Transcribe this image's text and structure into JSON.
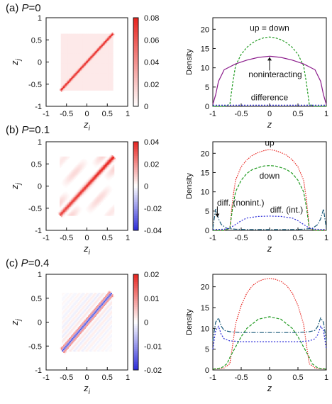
{
  "panels": [
    {
      "label": "(a)",
      "param_symbol": "P",
      "param_text": "=0",
      "heatmap": {
        "xlabel": "z",
        "xlabel_sub": "i",
        "ylabel": "z",
        "ylabel_sub": "j",
        "x_ticks": [
          "-1",
          "-0.5",
          "0",
          "0.5",
          "1"
        ],
        "y_ticks": [
          "1",
          "0.5",
          "0",
          "-0.5",
          "-1"
        ],
        "colorbar_ticks": [
          "0.08",
          "0.06",
          "0.04",
          "0.02",
          "0"
        ],
        "colorbar_range": [
          0,
          0.08
        ],
        "pattern": "diagonal-only"
      },
      "density": {
        "xlabel": "z",
        "ylabel": "Density",
        "x_ticks": [
          "-1",
          "-0.5",
          "0",
          "0.5",
          "1"
        ],
        "y_ticks": [
          "20",
          "15",
          "10",
          "5",
          "0"
        ],
        "ylim": [
          0,
          23
        ],
        "annotations": [
          "up = down",
          "noninteracting",
          "difference"
        ]
      }
    },
    {
      "label": "(b)",
      "param_symbol": "P",
      "param_text": "=0.1",
      "heatmap": {
        "xlabel": "z",
        "xlabel_sub": "i",
        "ylabel": "z",
        "ylabel_sub": "j",
        "x_ticks": [
          "-1",
          "-0.5",
          "0",
          "0.5",
          "1"
        ],
        "y_ticks": [
          "1",
          "0.5",
          "0",
          "-0.5",
          "-1"
        ],
        "colorbar_ticks": [
          "0.04",
          "0.02",
          "0",
          "-0.02",
          "-0.04"
        ],
        "colorbar_range": [
          -0.04,
          0.04
        ],
        "pattern": "diagonal-with-blobs"
      },
      "density": {
        "xlabel": "z",
        "ylabel": "Density",
        "x_ticks": [
          "-1",
          "-0.5",
          "0",
          "0.5",
          "1"
        ],
        "y_ticks": [
          "20",
          "15",
          "10",
          "5",
          "0"
        ],
        "ylim": [
          0,
          23
        ],
        "annotations": [
          "up",
          "down",
          "diff. (nonint.)",
          "diff. (int.)"
        ]
      }
    },
    {
      "label": "(c)",
      "param_symbol": "P",
      "param_text": "=0.4",
      "heatmap": {
        "xlabel": "z",
        "xlabel_sub": "i",
        "ylabel": "z",
        "ylabel_sub": "j",
        "x_ticks": [
          "-1",
          "-0.5",
          "0",
          "0.5",
          "1"
        ],
        "y_ticks": [
          "1",
          "0.5",
          "0",
          "-0.5",
          "-1"
        ],
        "colorbar_ticks": [
          "0.02",
          "0.01",
          "0",
          "-0.01",
          "-0.02"
        ],
        "colorbar_range": [
          -0.02,
          0.02
        ],
        "pattern": "diagonal-with-fine-stripes"
      },
      "density": {
        "xlabel": "z",
        "ylabel": "Density",
        "x_ticks": [
          "-1",
          "-0.5",
          "0",
          "0.5",
          "1"
        ],
        "y_ticks": [
          "20",
          "15",
          "10",
          "5",
          "0"
        ],
        "ylim": [
          0,
          23
        ],
        "annotations": []
      }
    }
  ],
  "colors": {
    "up": "#e8231e",
    "down": "#1f9a1f",
    "noninteracting": "#8a1a8a",
    "diff_nonint": "#1a5a7a",
    "diff_int": "#2a2ad8",
    "cmap_pos": "#e8231e",
    "cmap_neg": "#2a2ad8"
  },
  "chart_data": [
    {
      "type": "heatmap",
      "panel": "(a)",
      "x_range": [
        -1,
        1
      ],
      "y_range": [
        -1,
        1
      ],
      "color_range": [
        0,
        0.08
      ],
      "features": {
        "diagonal_peak": 0.08,
        "support": [
          -0.65,
          0.65
        ],
        "background": 0.01
      }
    },
    {
      "type": "line",
      "panel": "(a)",
      "xlim": [
        -1,
        1
      ],
      "ylim": [
        0,
        23
      ],
      "series": [
        {
          "name": "up = down",
          "x": [
            -1,
            -0.8,
            -0.7,
            -0.65,
            -0.6,
            -0.5,
            -0.4,
            -0.3,
            -0.2,
            -0.1,
            0,
            0.1,
            0.2,
            0.3,
            0.4,
            0.5,
            0.6,
            0.65,
            0.7,
            0.8,
            1
          ],
          "y": [
            0,
            0,
            0.5,
            6,
            10.5,
            13.5,
            15.3,
            16.5,
            17.3,
            17.8,
            18,
            17.8,
            17.3,
            16.5,
            15.3,
            13.5,
            10.5,
            6,
            0.5,
            0,
            0
          ]
        },
        {
          "name": "noninteracting",
          "x": [
            -1,
            -0.95,
            -0.9,
            -0.8,
            -0.6,
            -0.4,
            -0.2,
            0,
            0.2,
            0.4,
            0.6,
            0.8,
            0.9,
            0.95,
            1
          ],
          "y": [
            0.5,
            3,
            6.5,
            9.5,
            11,
            12,
            12.7,
            13,
            12.7,
            12,
            11,
            9.5,
            6.5,
            3,
            0.5
          ]
        },
        {
          "name": "difference",
          "x": [
            -1,
            1
          ],
          "y": [
            0.3,
            0.3
          ]
        }
      ]
    },
    {
      "type": "heatmap",
      "panel": "(b)",
      "x_range": [
        -1,
        1
      ],
      "y_range": [
        -1,
        1
      ],
      "color_range": [
        -0.04,
        0.04
      ],
      "features": {
        "diagonal_peak": 0.04,
        "support": [
          -0.65,
          0.65
        ],
        "offdiagonal_amplitude": 0.012
      }
    },
    {
      "type": "line",
      "panel": "(b)",
      "xlim": [
        -1,
        1
      ],
      "ylim": [
        0,
        23
      ],
      "series": [
        {
          "name": "up",
          "x": [
            -1,
            -0.8,
            -0.7,
            -0.65,
            -0.6,
            -0.5,
            -0.4,
            -0.3,
            -0.2,
            -0.1,
            0,
            0.1,
            0.2,
            0.3,
            0.4,
            0.5,
            0.6,
            0.65,
            0.7,
            0.8,
            1
          ],
          "y": [
            0,
            0,
            0.5,
            8,
            13,
            16.5,
            18.3,
            19.5,
            20.2,
            20.7,
            21,
            20.7,
            20.2,
            19.5,
            18.3,
            16.5,
            13,
            8,
            0.5,
            0,
            0
          ]
        },
        {
          "name": "down",
          "x": [
            -1,
            -0.8,
            -0.7,
            -0.65,
            -0.6,
            -0.5,
            -0.4,
            -0.3,
            -0.2,
            -0.1,
            0,
            0.1,
            0.2,
            0.3,
            0.4,
            0.5,
            0.6,
            0.65,
            0.7,
            0.8,
            1
          ],
          "y": [
            0,
            0,
            0.5,
            6,
            10,
            13,
            14.8,
            15.8,
            16.3,
            16.7,
            16.8,
            16.7,
            16.3,
            15.8,
            14.8,
            13,
            10,
            6,
            0.5,
            0,
            0
          ]
        },
        {
          "name": "diff. (nonint.)",
          "x": [
            -1,
            -0.95,
            -0.9,
            -0.85,
            -0.75,
            -0.6,
            -0.3,
            0,
            0.3,
            0.6,
            0.75,
            0.85,
            0.9,
            0.95,
            1
          ],
          "y": [
            0.5,
            5.5,
            3,
            1.5,
            0.5,
            0.3,
            0.2,
            0.2,
            0.2,
            0.3,
            0.5,
            1.5,
            3,
            5.5,
            0.5
          ]
        },
        {
          "name": "diff. (int.)",
          "x": [
            -1,
            -0.8,
            -0.7,
            -0.6,
            -0.5,
            -0.4,
            -0.2,
            0,
            0.2,
            0.4,
            0.5,
            0.6,
            0.7,
            0.8,
            1
          ],
          "y": [
            0.2,
            0.3,
            0.6,
            1.5,
            2.5,
            3.2,
            3.6,
            3.7,
            3.6,
            3.2,
            2.5,
            1.5,
            0.6,
            0.3,
            0.2
          ]
        }
      ]
    },
    {
      "type": "heatmap",
      "panel": "(c)",
      "x_range": [
        -1,
        1
      ],
      "y_range": [
        -1,
        1
      ],
      "color_range": [
        -0.02,
        0.02
      ],
      "features": {
        "diagonal_peak": 0.02,
        "support": [
          -0.6,
          0.6
        ],
        "offdiagonal_amplitude": 0.004
      }
    },
    {
      "type": "line",
      "panel": "(c)",
      "xlim": [
        -1,
        1
      ],
      "ylim": [
        0,
        23
      ],
      "series": [
        {
          "x": [
            -1,
            -0.8,
            -0.7,
            -0.65,
            -0.6,
            -0.5,
            -0.4,
            -0.3,
            -0.2,
            -0.1,
            0,
            0.1,
            0.2,
            0.3,
            0.4,
            0.5,
            0.6,
            0.65,
            0.7,
            0.8,
            1
          ],
          "y": [
            0.2,
            0.5,
            1.5,
            6,
            11,
            15.5,
            18.5,
            20.3,
            21.3,
            21.8,
            22,
            21.8,
            21.3,
            20.3,
            18.5,
            15.5,
            11,
            6,
            1.5,
            0.5,
            0.2
          ]
        },
        {
          "x": [
            -1,
            -0.85,
            -0.75,
            -0.7,
            -0.6,
            -0.5,
            -0.4,
            -0.2,
            0,
            0.2,
            0.4,
            0.5,
            0.6,
            0.7,
            0.75,
            0.85,
            1
          ],
          "y": [
            0.2,
            0.5,
            1.5,
            3,
            5.5,
            8,
            10,
            12.2,
            12.8,
            12.2,
            10,
            8,
            5.5,
            3,
            1.5,
            0.5,
            0.2
          ]
        },
        {
          "x": [
            -1,
            -0.95,
            -0.9,
            -0.85,
            -0.8,
            -0.7,
            -0.5,
            0,
            0.5,
            0.7,
            0.8,
            0.85,
            0.9,
            0.95,
            1
          ],
          "y": [
            7,
            11.5,
            12.5,
            10.5,
            9.5,
            9.2,
            9,
            9,
            9,
            9.2,
            9.5,
            10.5,
            12.5,
            11.5,
            7
          ]
        },
        {
          "x": [
            -1,
            -0.95,
            -0.9,
            -0.85,
            -0.8,
            -0.7,
            -0.5,
            0,
            0.5,
            0.7,
            0.8,
            0.85,
            0.9,
            0.95,
            1
          ],
          "y": [
            5,
            9.5,
            10.5,
            8.5,
            7.5,
            7,
            6.8,
            6.8,
            6.8,
            7,
            7.5,
            8.5,
            10.5,
            9.5,
            5
          ]
        }
      ]
    }
  ]
}
